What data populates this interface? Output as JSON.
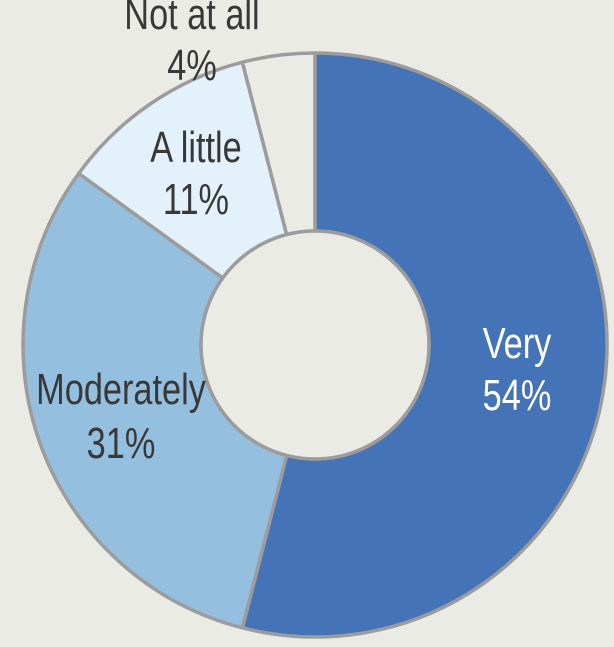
{
  "chart_data": {
    "type": "pie",
    "style": "donut",
    "categories": [
      "Very",
      "Moderately",
      "A little",
      "Not at all"
    ],
    "values": [
      54,
      31,
      11,
      4
    ],
    "value_labels": [
      "54%",
      "31%",
      "11%",
      "4%"
    ],
    "colors": [
      "#4573b7",
      "#94bfdf",
      "#e3f1fa",
      "#ebebe6"
    ],
    "label_colors": [
      "#ffffff",
      "#383838",
      "#383838",
      "#383838"
    ],
    "outline_color": "#9c9c9c",
    "background": "#ebebe6",
    "start_angle": "12 o'clock",
    "direction": "clockwise",
    "legend": "none (labels placed on slices)"
  }
}
